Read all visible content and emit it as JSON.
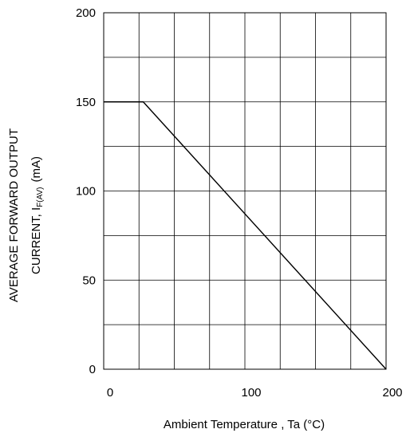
{
  "chart_data": {
    "type": "line",
    "title": "",
    "xlabel": "Ambient Temperature , Ta (°C)",
    "ylabel": {
      "line1": "AVERAGE FORWARD OUTPUT",
      "line2_prefix": "CURRENT, I",
      "line2_subscript": "F(AV)",
      "line2_unit": "(mA)"
    },
    "xlim": [
      0,
      200
    ],
    "ylim": [
      0,
      200
    ],
    "x_ticks": [
      0,
      100,
      200
    ],
    "y_ticks": [
      0,
      50,
      100,
      150,
      200
    ],
    "x_tick_labels": [
      "0",
      "100",
      "200"
    ],
    "y_tick_labels": [
      "0",
      "50",
      "100",
      "150",
      "200"
    ],
    "grid": true,
    "grid_x_divisions": 8,
    "grid_y_divisions": 8,
    "legend": "none",
    "series": [
      {
        "x": [
          0,
          28,
          200
        ],
        "y": [
          150,
          150,
          0
        ]
      }
    ]
  }
}
